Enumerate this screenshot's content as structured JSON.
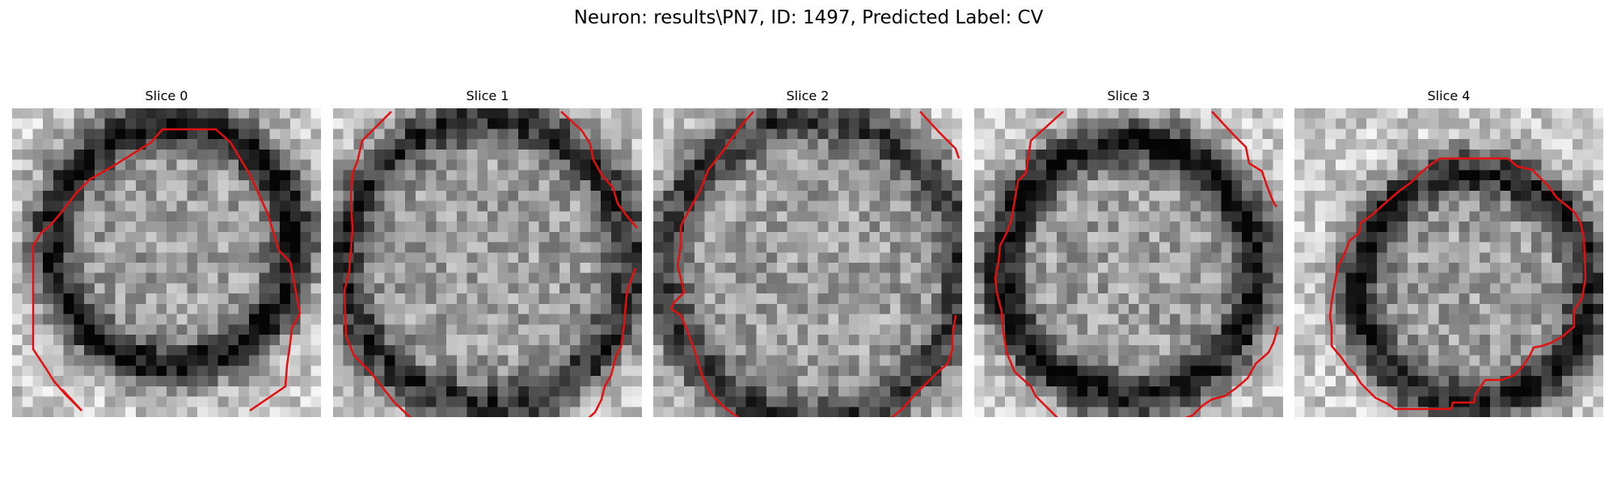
{
  "figure": {
    "title": "Neuron: results\\PN7, ID: 1497, Predicted Label: CV"
  },
  "colors": {
    "contour": "#e41010",
    "background": "#ffffff"
  },
  "image_grid": {
    "cols": 30,
    "rows": 30
  },
  "slices": [
    {
      "title": "Slice 0",
      "seed": 11,
      "ring_radius": 0.39,
      "ring_center": [
        0.52,
        0.44
      ],
      "darkness": 0.55
    },
    {
      "title": "Slice 1",
      "seed": 23,
      "ring_radius": 0.46,
      "ring_center": [
        0.5,
        0.5
      ],
      "darkness": 0.45
    },
    {
      "title": "Slice 2",
      "seed": 37,
      "ring_radius": 0.48,
      "ring_center": [
        0.52,
        0.52
      ],
      "darkness": 0.4
    },
    {
      "title": "Slice 3",
      "seed": 41,
      "ring_radius": 0.41,
      "ring_center": [
        0.5,
        0.52
      ],
      "darkness": 0.55
    },
    {
      "title": "Slice 4",
      "seed": 53,
      "ring_radius": 0.37,
      "ring_center": [
        0.58,
        0.58
      ],
      "darkness": 0.5
    }
  ]
}
